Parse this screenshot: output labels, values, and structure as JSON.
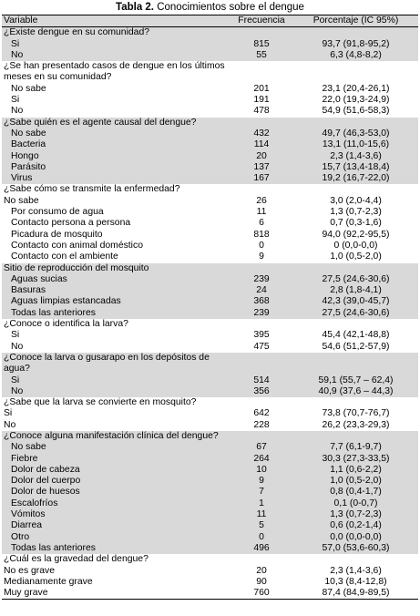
{
  "title": {
    "label": "Tabla 2.",
    "text": "Conocimientos sobre el dengue"
  },
  "header": [
    "Variable",
    "Frecuencia",
    "Porcentaje (IC 95%)"
  ],
  "sections": [
    {
      "title": "¿Existe dengue en su comunidad?",
      "rows": [
        [
          "Si",
          815,
          "93,7 (91,8-95,2)"
        ],
        [
          "No",
          55,
          "6,3 (4,8-8,2)"
        ]
      ]
    },
    {
      "title": "¿Se han presentado casos de dengue en los últimos meses en su comunidad?",
      "rows": [
        [
          "No sabe",
          201,
          "23,1 (20,4-26,1)"
        ],
        [
          "Si",
          191,
          "22,0 (19,3-24,9)"
        ],
        [
          "No",
          478,
          "54,9 (51,6-58,3)"
        ]
      ]
    },
    {
      "title": "¿Sabe quién es el agente causal del dengue?",
      "rows": [
        [
          "No sabe",
          432,
          "49,7 (46,3-53,0)"
        ],
        [
          "Bacteria",
          114,
          "13,1 (11,0-15,6)"
        ],
        [
          "Hongo",
          20,
          "2,3 (1,4-3,6)"
        ],
        [
          "Parásito",
          137,
          "15,7 (13,4-18,4)"
        ],
        [
          "Virus",
          167,
          "19,2 (16,7-22,0)"
        ]
      ]
    },
    {
      "title": "¿Sabe cómo se transmite la enfermedad?",
      "rows": [
        [
          "No sabe",
          26,
          "3,0 (2,0-4,4)"
        ],
        [
          "Por consumo de agua",
          11,
          "1,3 (0,7-2,3)"
        ],
        [
          "Contacto persona a persona",
          6,
          "0,7 (0,3-1,6)"
        ],
        [
          "Picadura de mosquito",
          818,
          "94,0 (92,2-95,5)"
        ],
        [
          "Contacto con animal doméstico",
          0,
          "0 (0,0-0,0)"
        ],
        [
          "Contacto con el ambiente",
          9,
          "1,0 (0,5-2,0)"
        ]
      ]
    },
    {
      "title": "Sitio de reproducción del mosquito",
      "rows": [
        [
          "Aguas sucias",
          239,
          "27,5 (24,6-30,6)"
        ],
        [
          "Basuras",
          24,
          "2,8 (1,8-4,1)"
        ],
        [
          "Aguas limpias estancadas",
          368,
          "42,3 (39,0-45,7)"
        ],
        [
          "Todas las anteriores",
          239,
          "27,5 (24,6-30,6)"
        ]
      ]
    },
    {
      "title": "¿Conoce o identifica la larva?",
      "rows": [
        [
          "Si",
          395,
          "45,4 (42,1-48,8)"
        ],
        [
          "No",
          475,
          "54,6 (51,2-57,9)"
        ]
      ]
    },
    {
      "title": "¿Conoce la larva o gusarapo en los depósitos de agua?",
      "rows": [
        [
          "Si",
          514,
          "59,1 (55,7 – 62,4)"
        ],
        [
          "No",
          356,
          "40,9 (37,6 – 44,3)"
        ]
      ]
    },
    {
      "title": "¿Sabe que la larva se convierte en mosquito?",
      "rows": [
        [
          "Si",
          642,
          "73,8 (70,7-76,7)"
        ],
        [
          "No",
          228,
          "26,2 (23,3-29,3)"
        ]
      ]
    },
    {
      "title": "¿Conoce alguna manifestación clínica del dengue?",
      "rows": [
        [
          "No sabe",
          67,
          "7,7 (6,1-9,7)"
        ],
        [
          "Fiebre",
          264,
          "30,3 (27,3-33,5)"
        ],
        [
          "Dolor de cabeza",
          10,
          "1,1 (0,6-2,2)"
        ],
        [
          "Dolor del cuerpo",
          9,
          "1,0 (0,5-2,0)"
        ],
        [
          "Dolor de huesos",
          7,
          "0,8 (0,4-1,7)"
        ],
        [
          "Escalofríos",
          1,
          "0,1 (0-0,7)"
        ],
        [
          "Vómitos",
          11,
          "1,3 (0,7-2,3)"
        ],
        [
          "Diarrea",
          5,
          "0,6 (0,2-1,4)"
        ],
        [
          "Otro",
          0,
          "0,0 (0,0-0,0)"
        ],
        [
          "Todas las anteriores",
          496,
          "57,0 (53,6-60,3)"
        ]
      ]
    },
    {
      "title": "¿Cuál es la gravedad del dengue?",
      "rows": [
        [
          "No es grave",
          20,
          "2,3 (1,4-3,6)"
        ],
        [
          "Medianamente grave",
          90,
          "10,3 (8,4-12,8)"
        ],
        [
          "Muy grave",
          760,
          "87,4 (84,9-89,5)"
        ]
      ]
    }
  ]
}
